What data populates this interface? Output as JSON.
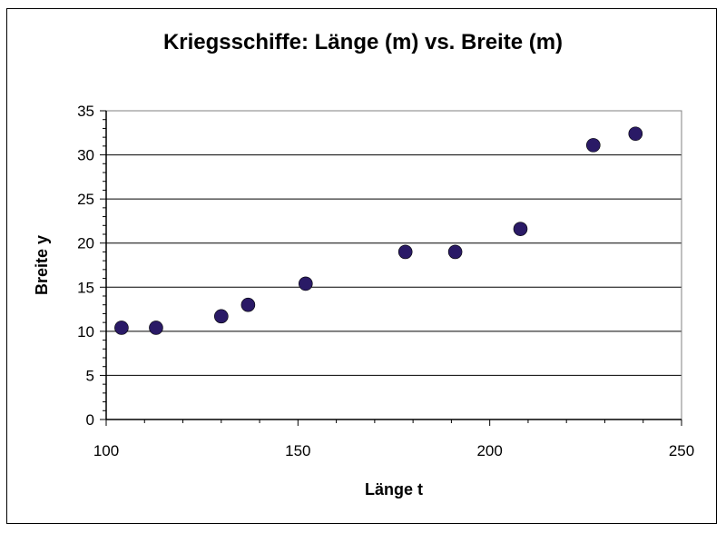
{
  "chart_data": {
    "type": "scatter",
    "title": "Kriegsschiffe: Länge (m) vs. Breite (m)",
    "xlabel": "Länge t",
    "ylabel": "Breite y",
    "xlim": [
      100,
      250
    ],
    "ylim": [
      0,
      35
    ],
    "x_ticks": [
      100,
      150,
      200,
      250
    ],
    "y_ticks": [
      0,
      5,
      10,
      15,
      20,
      25,
      30,
      35
    ],
    "x_minor_step": 10,
    "y_minor_step": 1,
    "grid": "horizontal",
    "legend": "none",
    "series": [
      {
        "x": [
          104,
          113,
          130,
          137,
          152,
          178,
          191,
          208,
          227,
          238
        ],
        "y": [
          10.4,
          10.4,
          11.7,
          13.0,
          15.4,
          19.0,
          19.0,
          21.6,
          31.1,
          32.4
        ]
      }
    ],
    "marker_color": "#2a1a66",
    "grid_color": "#000000"
  }
}
